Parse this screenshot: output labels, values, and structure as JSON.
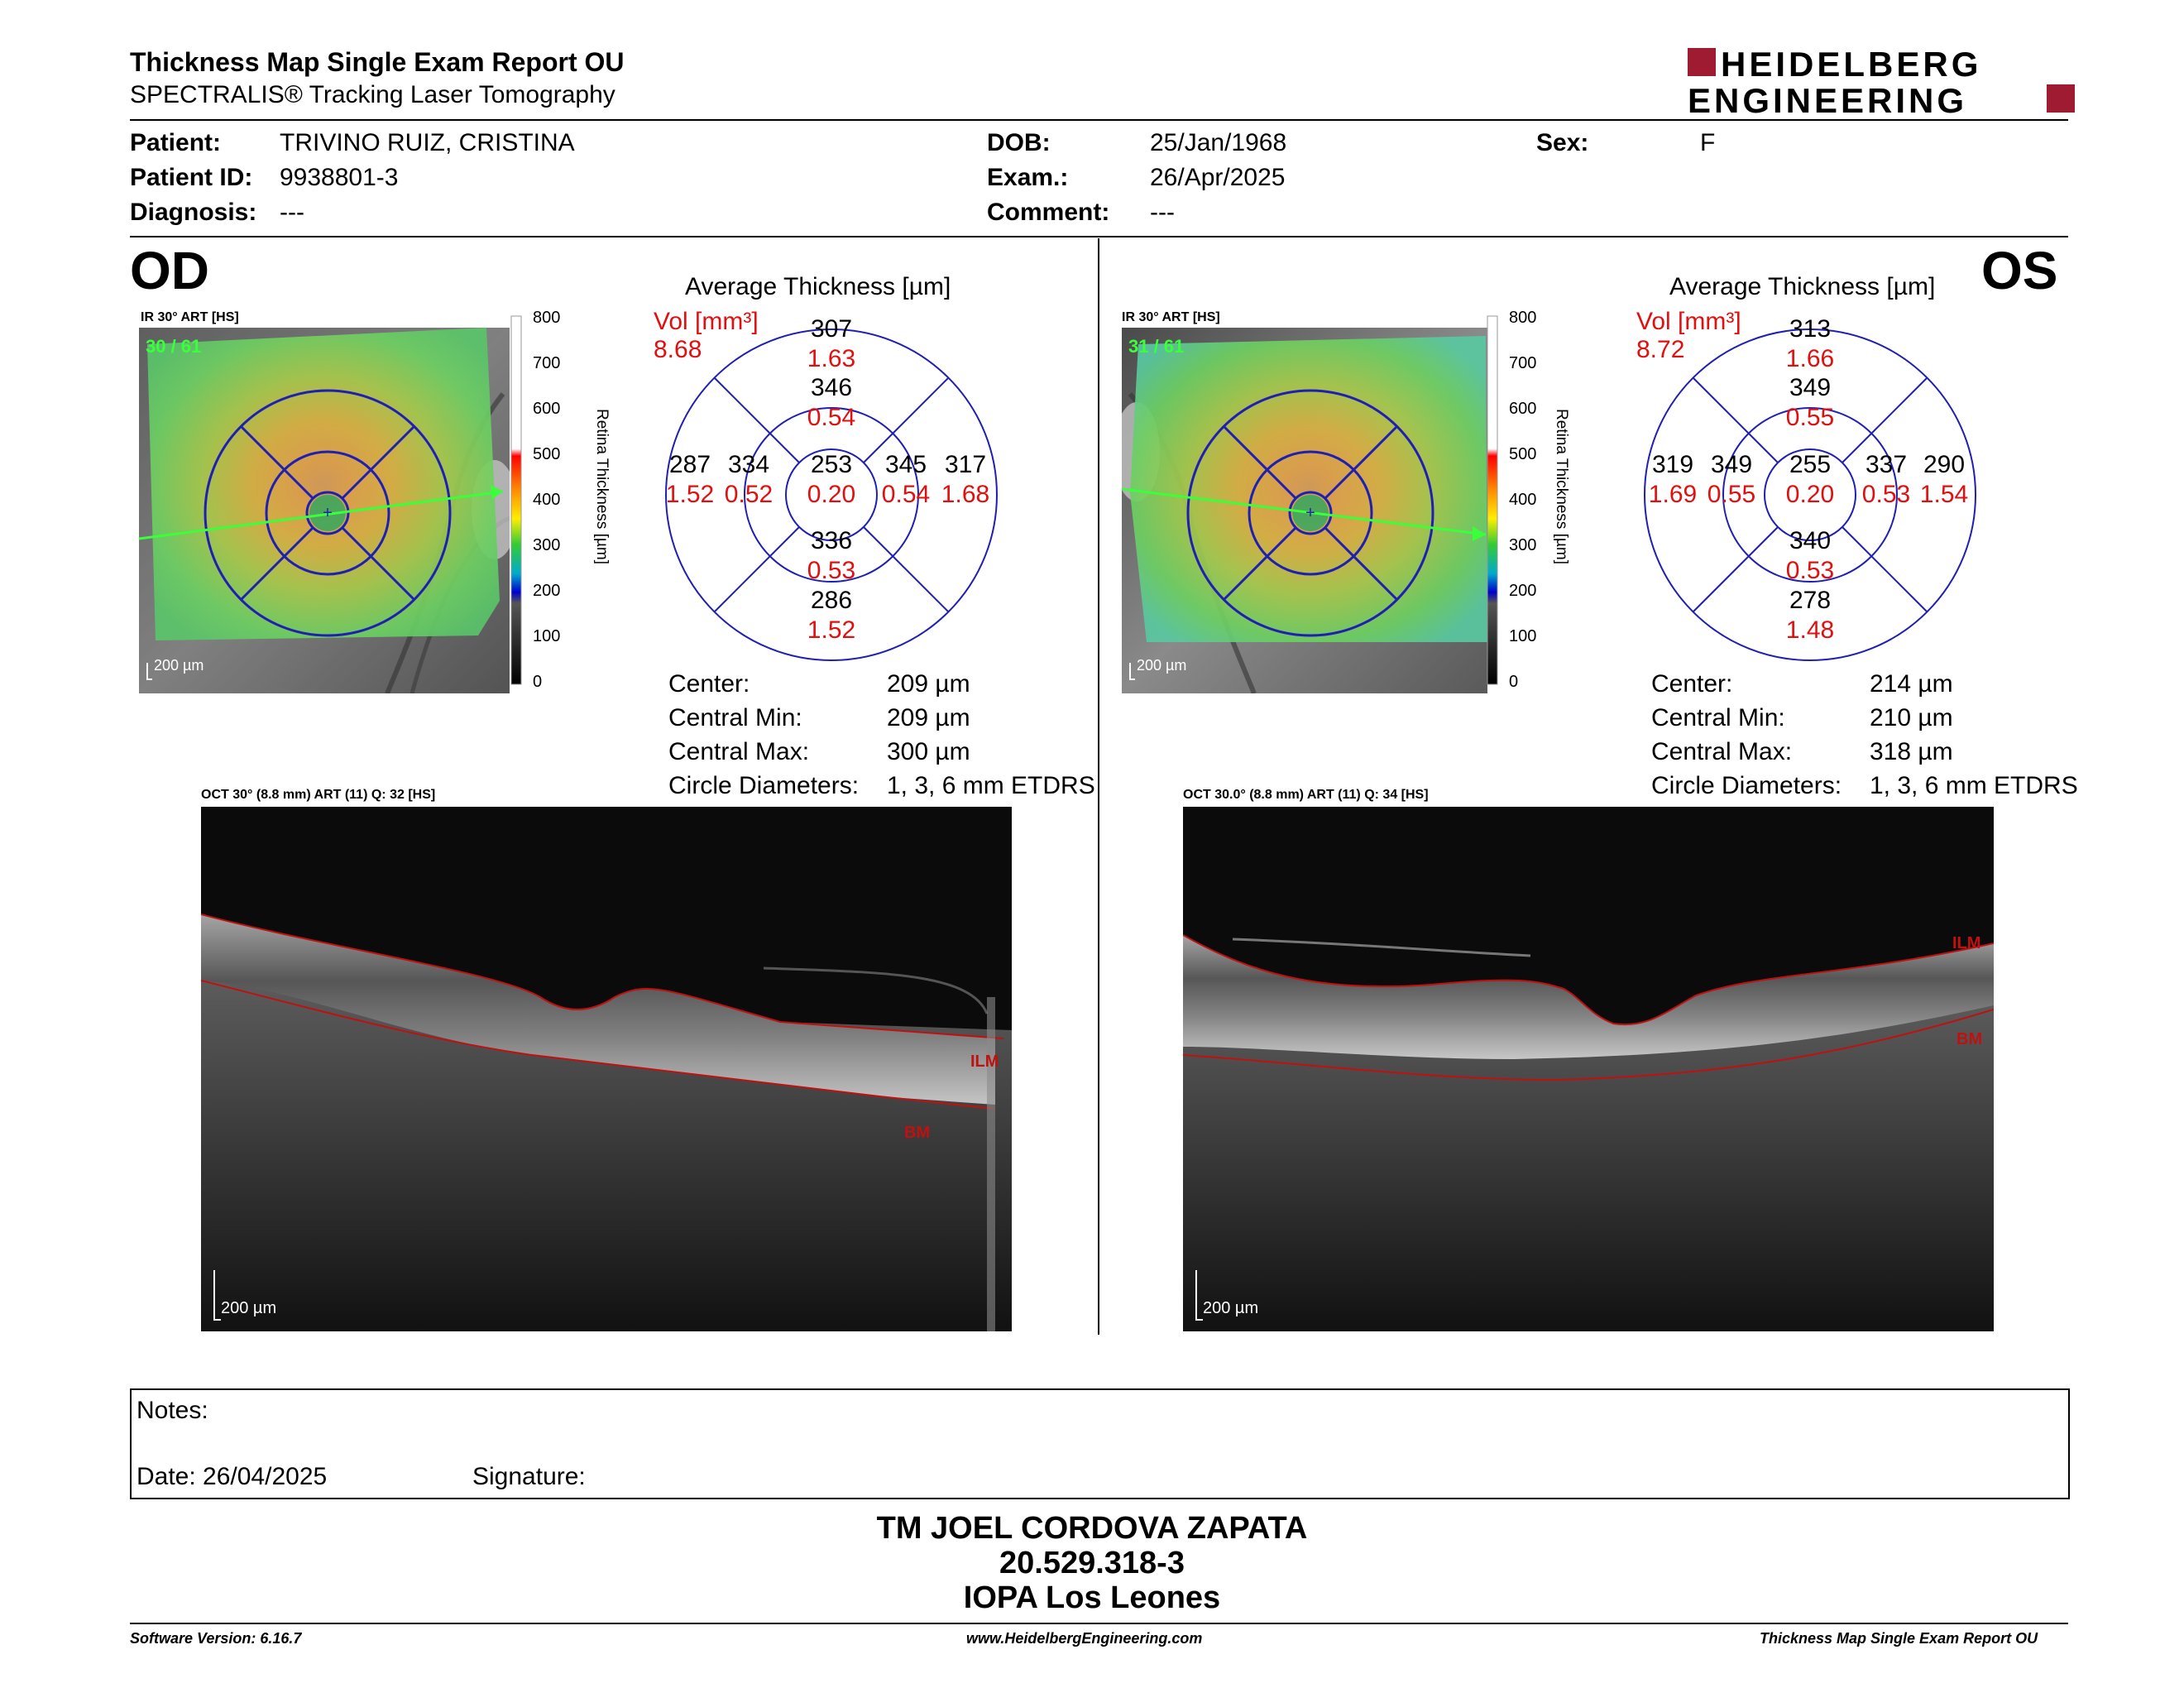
{
  "header": {
    "title": "Thickness Map Single Exam Report OU",
    "subtitle": "SPECTRALIS® Tracking Laser Tomography",
    "logo_line1": "HEIDELBERG",
    "logo_line2": "ENGINEERING",
    "brand_color": "#9e1b32"
  },
  "patient": {
    "patient_label": "Patient:",
    "patient_value": "TRIVINO RUIZ, CRISTINA",
    "id_label": "Patient ID:",
    "id_value": "9938801-3",
    "diag_label": "Diagnosis:",
    "diag_value": "---",
    "dob_label": "DOB:",
    "dob_value": "25/Jan/1968",
    "exam_label": "Exam.:",
    "exam_value": "26/Apr/2025",
    "comment_label": "Comment:",
    "comment_value": "---",
    "sex_label": "Sex:",
    "sex_value": "F"
  },
  "od": {
    "eye": "OD",
    "ir_caption": "IR 30° ART [HS]",
    "frames": "30 / 61",
    "scale": "200 µm",
    "scale_ticks": [
      "800",
      "700",
      "600",
      "500",
      "400",
      "300",
      "200",
      "100",
      "0"
    ],
    "scale_label": "Retina  Thickness [µm]",
    "avg_title": "Average Thickness [µm]",
    "vol_label": "Vol [mm³]",
    "vol_value": "8.68",
    "grid": {
      "outer_sup": "307",
      "outer_sup_vol": "1.63",
      "inner_sup": "346",
      "inner_sup_vol": "0.54",
      "outer_temp": "287",
      "outer_temp_vol": "1.52",
      "inner_temp": "334",
      "inner_temp_vol": "0.52",
      "center": "253",
      "center_vol": "0.20",
      "inner_nas": "345",
      "inner_nas_vol": "0.54",
      "outer_nas": "317",
      "outer_nas_vol": "1.68",
      "inner_inf": "336",
      "inner_inf_vol": "0.53",
      "outer_inf": "286",
      "outer_inf_vol": "1.52"
    },
    "stats": {
      "center_label": "Center:",
      "center_value": "209 µm",
      "min_label": "Central Min:",
      "min_value": "209 µm",
      "max_label": "Central Max:",
      "max_value": "300 µm",
      "diam_label": "Circle Diameters:",
      "diam_value": "1, 3, 6 mm ETDRS"
    },
    "oct_caption": "OCT 30° (8.8 mm) ART (11) Q: 32 [HS]",
    "oct_scale": "200 µm",
    "ilm": "ILM",
    "bm": "BM"
  },
  "os": {
    "eye": "OS",
    "ir_caption": "IR 30° ART [HS]",
    "frames": "31 / 61",
    "scale": "200 µm",
    "scale_ticks": [
      "800",
      "700",
      "600",
      "500",
      "400",
      "300",
      "200",
      "100",
      "0"
    ],
    "scale_label": "Retina  Thickness [µm]",
    "avg_title": "Average Thickness [µm]",
    "vol_label": "Vol [mm³]",
    "vol_value": "8.72",
    "grid": {
      "outer_sup": "313",
      "outer_sup_vol": "1.66",
      "inner_sup": "349",
      "inner_sup_vol": "0.55",
      "outer_temp": "319",
      "outer_temp_vol": "1.69",
      "inner_temp": "349",
      "inner_temp_vol": "0.55",
      "center": "255",
      "center_vol": "0.20",
      "inner_nas": "337",
      "inner_nas_vol": "0.53",
      "outer_nas": "290",
      "outer_nas_vol": "1.54",
      "inner_inf": "340",
      "inner_inf_vol": "0.53",
      "outer_inf": "278",
      "outer_inf_vol": "1.48"
    },
    "stats": {
      "center_label": "Center:",
      "center_value": "214 µm",
      "min_label": "Central Min:",
      "min_value": "210 µm",
      "max_label": "Central Max:",
      "max_value": "318 µm",
      "diam_label": "Circle Diameters:",
      "diam_value": "1, 3, 6 mm ETDRS"
    },
    "oct_caption": "OCT 30.0° (8.8 mm) ART (11) Q: 34 [HS]",
    "oct_scale": "200 µm",
    "ilm": "ILM",
    "bm": "BM"
  },
  "notes": {
    "notes_label": "Notes:",
    "date_label": "Date: 26/04/2025",
    "signature_label": "Signature:"
  },
  "signatory": {
    "name": "TM JOEL CORDOVA ZAPATA",
    "id": "20.529.318-3",
    "institution": "IOPA Los Leones"
  },
  "footer": {
    "software": "Software Version: 6.16.7",
    "website": "www.HeidelbergEngineering.com",
    "report": "Thickness Map Single Exam Report OU"
  },
  "colors": {
    "grid_blue": "#1f1fb4",
    "volume_red": "#e01010",
    "frame_green": "#3cff3c",
    "ilm_red": "#c01010"
  }
}
